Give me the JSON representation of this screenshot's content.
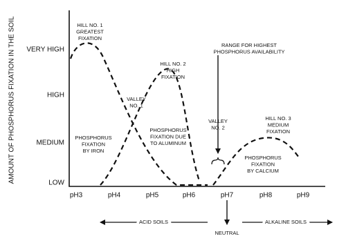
{
  "y_axis": {
    "title": "AMOUNT OF PHOSPHORUS FIXATION IN THE SOIL",
    "labels": [
      "VERY HIGH",
      "HIGH",
      "MEDIUM",
      "LOW"
    ]
  },
  "x_axis": {
    "labels": [
      "pH3",
      "pH4",
      "pH5",
      "pH6",
      "pH7",
      "pH8",
      "pH9"
    ]
  },
  "annotations": {
    "hill1": [
      "HILL NO. 1",
      "GREATEST",
      "FIXATION"
    ],
    "hill2": [
      "HILL NO. 2",
      "HIGH",
      "FIXATION"
    ],
    "hill3": [
      "HILL NO. 3",
      "MEDIUM",
      "FIXATION"
    ],
    "valley1": [
      "VALLEY",
      "NO. 1"
    ],
    "valley2": [
      "VALLEY",
      "NO. 2"
    ],
    "range": [
      "RANGE FOR HIGHEST",
      "PHOSPHORUS AVAILABILITY"
    ],
    "iron": [
      "PHOSPHORUS",
      "FIXATION",
      "BY IRON"
    ],
    "aluminum": [
      "PHOSPHORUS",
      "FIXATION DUE",
      "TO ALUMINUM"
    ],
    "calcium": [
      "PHOSPHORUS",
      "FIXATION",
      "BY CALCIUM"
    ]
  },
  "soil_scale": {
    "acid": "ACID SOILS",
    "neutral": "NEUTRAL",
    "alkaline": "ALKALINE SOILS"
  }
}
